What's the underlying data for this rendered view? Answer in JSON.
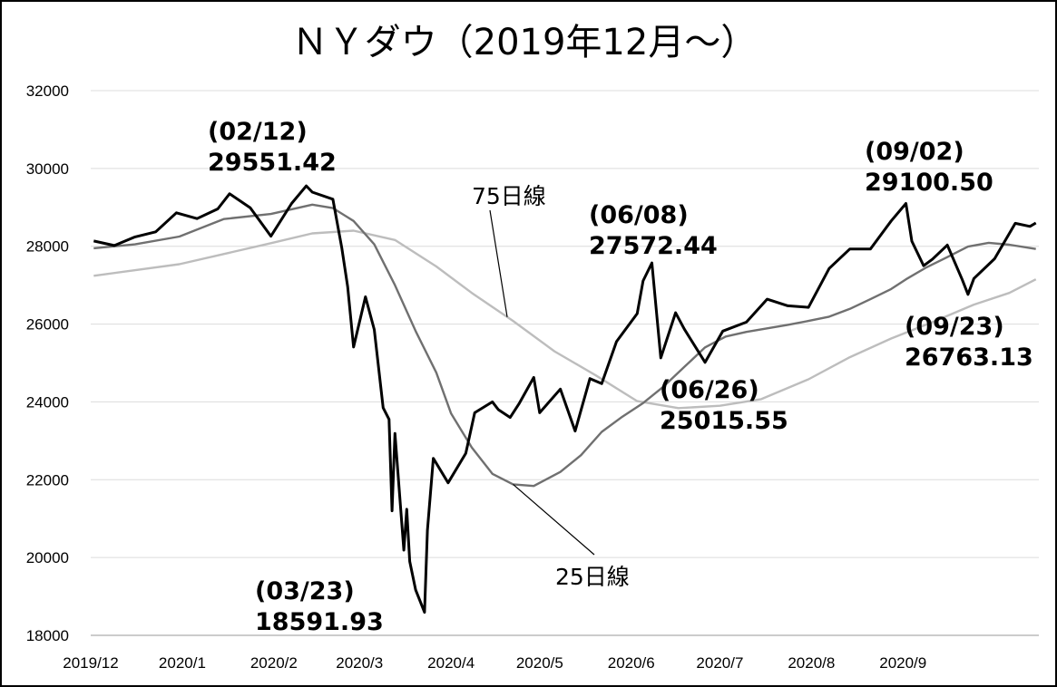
{
  "chart_data": {
    "type": "line",
    "title": "ＮＹダウ（2019年12月～）",
    "ylim": [
      18000,
      32000
    ],
    "yticks": [
      "18000",
      "20000",
      "22000",
      "24000",
      "26000",
      "28000",
      "30000",
      "32000"
    ],
    "xticks": [
      "2019/12",
      "2020/1",
      "2020/2",
      "2020/3",
      "2020/4",
      "2020/5",
      "2020/6",
      "2020/7",
      "2020/8",
      "2020/9"
    ],
    "grid": "horizontal",
    "legend": "none",
    "line_labels": [
      {
        "text": "75日線",
        "series": "ma75"
      },
      {
        "text": "25日線",
        "series": "ma25"
      }
    ],
    "annotations": [
      {
        "date_label": "(02/12)",
        "value_label": "29551.42"
      },
      {
        "date_label": "(03/23)",
        "value_label": "18591.93"
      },
      {
        "date_label": "(06/08)",
        "value_label": "27572.44"
      },
      {
        "date_label": "(06/26)",
        "value_label": "25015.55"
      },
      {
        "date_label": "(09/02)",
        "value_label": "29100.50"
      },
      {
        "date_label": "(09/23)",
        "value_label": "26763.13"
      }
    ],
    "series": [
      {
        "key": "price",
        "color": "#000000",
        "x": [
          "2019-12-02",
          "2019-12-09",
          "2019-12-16",
          "2019-12-23",
          "2019-12-30",
          "2020-01-06",
          "2020-01-13",
          "2020-01-17",
          "2020-01-24",
          "2020-01-31",
          "2020-02-07",
          "2020-02-12",
          "2020-02-14",
          "2020-02-21",
          "2020-02-24",
          "2020-02-26",
          "2020-02-28",
          "2020-03-03",
          "2020-03-06",
          "2020-03-09",
          "2020-03-11",
          "2020-03-12",
          "2020-03-13",
          "2020-03-16",
          "2020-03-17",
          "2020-03-18",
          "2020-03-20",
          "2020-03-23",
          "2020-03-24",
          "2020-03-26",
          "2020-03-31",
          "2020-04-06",
          "2020-04-09",
          "2020-04-15",
          "2020-04-17",
          "2020-04-21",
          "2020-04-24",
          "2020-04-29",
          "2020-05-01",
          "2020-05-08",
          "2020-05-13",
          "2020-05-18",
          "2020-05-22",
          "2020-05-27",
          "2020-06-03",
          "2020-06-05",
          "2020-06-08",
          "2020-06-11",
          "2020-06-16",
          "2020-06-19",
          "2020-06-26",
          "2020-07-02",
          "2020-07-10",
          "2020-07-17",
          "2020-07-24",
          "2020-07-31",
          "2020-08-07",
          "2020-08-14",
          "2020-08-21",
          "2020-08-28",
          "2020-09-02",
          "2020-09-04",
          "2020-09-08",
          "2020-09-11",
          "2020-09-16",
          "2020-09-21",
          "2020-09-23",
          "2020-09-25",
          "2020-10-02",
          "2020-10-09",
          "2020-10-14",
          "2020-10-16"
        ],
        "values": [
          28135,
          28020,
          28240,
          28370,
          28860,
          28710,
          28960,
          29350,
          28990,
          28260,
          29100,
          29551,
          29390,
          29210,
          27960,
          26960,
          25410,
          26700,
          25860,
          23850,
          23550,
          21200,
          23190,
          20190,
          21240,
          19900,
          19170,
          18592,
          20700,
          22550,
          21920,
          22680,
          23720,
          24000,
          23800,
          23600,
          23950,
          24630,
          23720,
          24330,
          23250,
          24600,
          24470,
          25550,
          26270,
          27110,
          27572,
          25130,
          26290,
          25870,
          25016,
          25820,
          26050,
          26640,
          26470,
          26430,
          27430,
          27930,
          27930,
          28650,
          29100,
          28130,
          27500,
          27670,
          28030,
          27150,
          26763,
          27170,
          27680,
          28590,
          28510,
          28600
        ]
      },
      {
        "key": "ma25",
        "color": "#707070",
        "x": [
          "2019-12-02",
          "2019-12-16",
          "2019-12-31",
          "2020-01-15",
          "2020-01-31",
          "2020-02-14",
          "2020-02-21",
          "2020-02-28",
          "2020-03-06",
          "2020-03-13",
          "2020-03-20",
          "2020-03-27",
          "2020-04-01",
          "2020-04-08",
          "2020-04-15",
          "2020-04-22",
          "2020-04-29",
          "2020-05-08",
          "2020-05-15",
          "2020-05-22",
          "2020-05-29",
          "2020-06-05",
          "2020-06-12",
          "2020-06-19",
          "2020-06-26",
          "2020-07-03",
          "2020-07-10",
          "2020-07-17",
          "2020-07-24",
          "2020-07-31",
          "2020-08-07",
          "2020-08-14",
          "2020-08-21",
          "2020-08-28",
          "2020-09-02",
          "2020-09-09",
          "2020-09-16",
          "2020-09-23",
          "2020-09-30",
          "2020-10-07",
          "2020-10-16"
        ],
        "values": [
          27950,
          28050,
          28250,
          28700,
          28830,
          29070,
          28980,
          28650,
          28050,
          27000,
          25820,
          24750,
          23700,
          22830,
          22150,
          21880,
          21840,
          22200,
          22630,
          23230,
          23620,
          23970,
          24400,
          24900,
          25400,
          25680,
          25800,
          25890,
          25980,
          26080,
          26190,
          26390,
          26640,
          26900,
          27150,
          27460,
          27720,
          27990,
          28090,
          28040,
          27930
        ]
      },
      {
        "key": "ma75",
        "color": "#bdbdbd",
        "x": [
          "2019-12-02",
          "2019-12-31",
          "2020-01-15",
          "2020-01-31",
          "2020-02-14",
          "2020-02-28",
          "2020-03-13",
          "2020-03-27",
          "2020-04-08",
          "2020-04-22",
          "2020-05-06",
          "2020-05-20",
          "2020-06-03",
          "2020-06-17",
          "2020-07-01",
          "2020-07-15",
          "2020-07-31",
          "2020-08-14",
          "2020-08-28",
          "2020-09-11",
          "2020-09-25",
          "2020-10-07",
          "2020-10-16"
        ],
        "values": [
          27240,
          27540,
          27800,
          28080,
          28330,
          28400,
          28160,
          27480,
          26800,
          26080,
          25300,
          24680,
          24020,
          23840,
          23900,
          24070,
          24580,
          25150,
          25630,
          26050,
          26500,
          26800,
          27150
        ]
      }
    ]
  }
}
